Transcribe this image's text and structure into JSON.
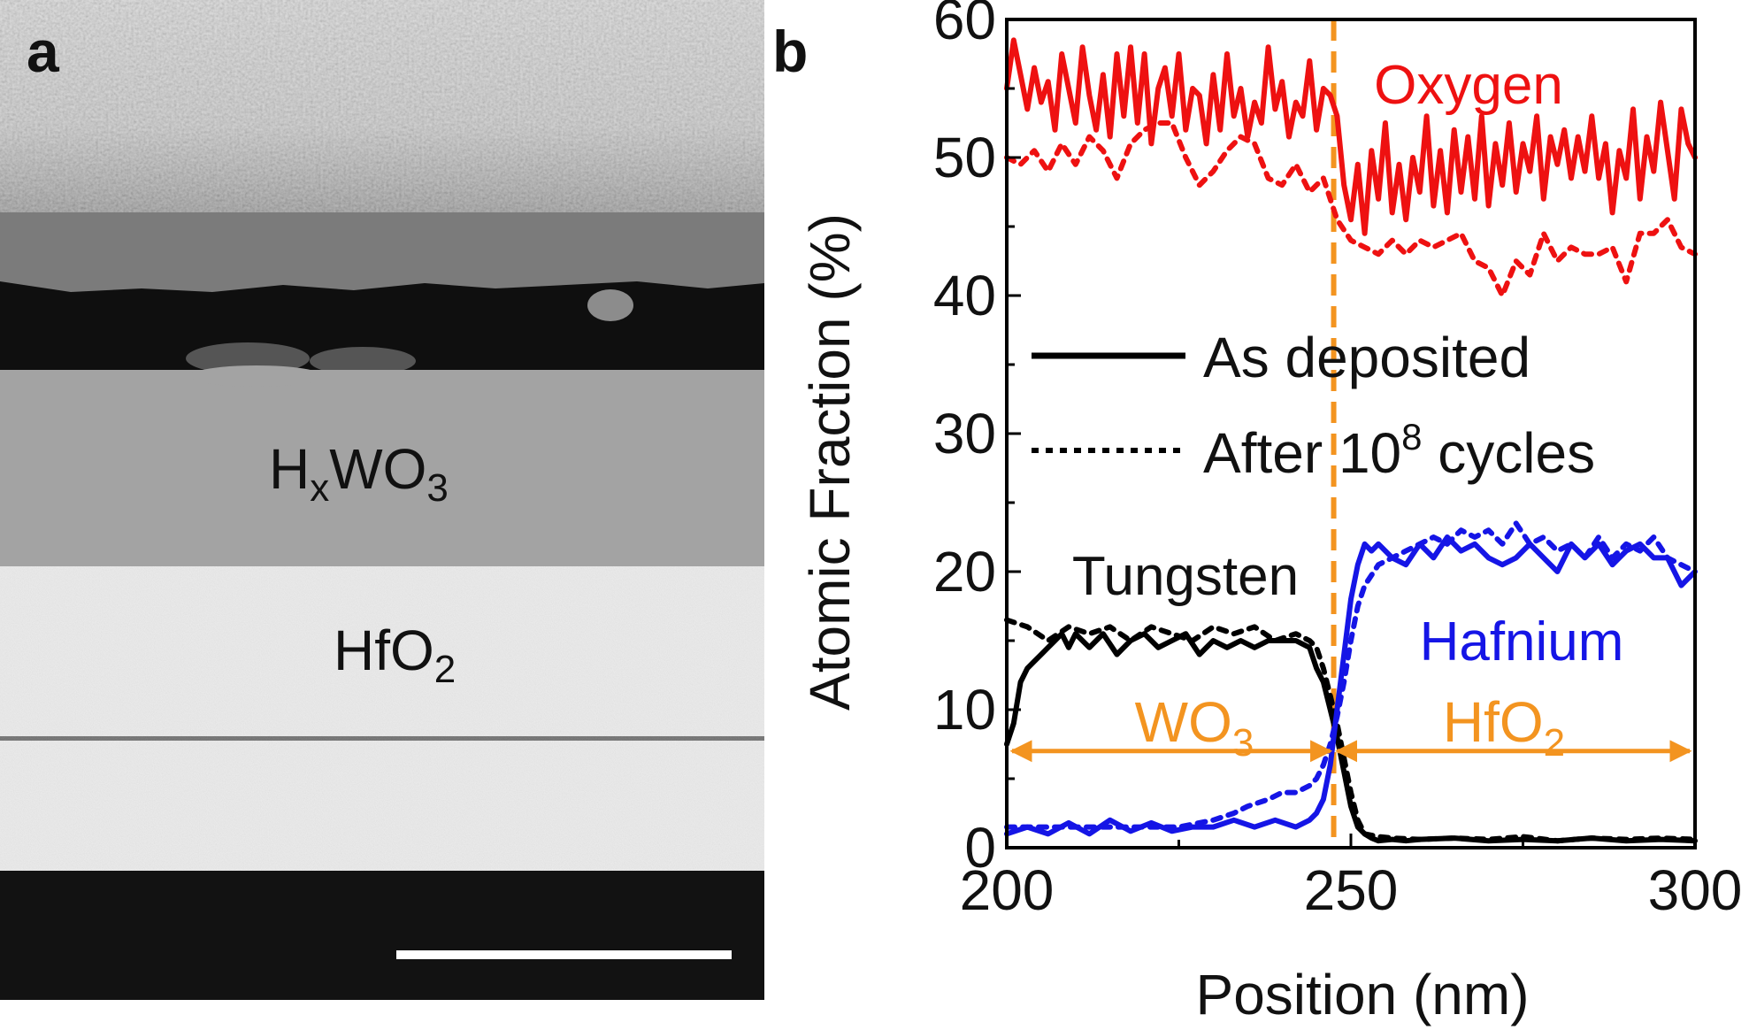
{
  "panel_a": {
    "label": "a",
    "layer_top": {
      "main": "H",
      "sub1": "x",
      "mid": "WO",
      "sub2": "3"
    },
    "layer_bottom": {
      "main": "HfO",
      "sub": "2"
    }
  },
  "chart_data": {
    "type": "line",
    "panel_label": "b",
    "xlabel": "Position (nm)",
    "ylabel": "Atomic Fraction (%)",
    "xlim": [
      200,
      300
    ],
    "ylim": [
      0,
      60
    ],
    "xticks": [
      200,
      250,
      300
    ],
    "yticks": [
      0,
      10,
      20,
      30,
      40,
      50,
      60
    ],
    "interface_x": 247.5,
    "legend": {
      "solid": "As deposited",
      "dotted_prefix": "After 10",
      "dotted_sup": "8",
      "dotted_suffix": " cycles"
    },
    "annotations": {
      "oxygen": "Oxygen",
      "tungsten": "Tungsten",
      "hafnium": "Hafnium",
      "region_left_main": "WO",
      "region_left_sub": "3",
      "region_right_main": "HfO",
      "region_right_sub": "2"
    },
    "colors": {
      "oxygen": "#ee1111",
      "tungsten": "#000000",
      "hafnium": "#1515e6",
      "interface": "#f39420"
    },
    "region_arrow_y": 7,
    "series": [
      {
        "name": "Oxygen (as deposited)",
        "color": "#ee1111",
        "style": "solid",
        "x": [
          200,
          201,
          202,
          203,
          204,
          205,
          206,
          207,
          208,
          209,
          210,
          211,
          212,
          213,
          214,
          215,
          216,
          217,
          218,
          219,
          220,
          221,
          222,
          223,
          224,
          225,
          226,
          227,
          228,
          229,
          230,
          231,
          232,
          233,
          234,
          235,
          236,
          237,
          238,
          239,
          240,
          241,
          242,
          243,
          244,
          245,
          246,
          247,
          248,
          249,
          250,
          251,
          252,
          253,
          254,
          255,
          256,
          257,
          258,
          259,
          260,
          261,
          262,
          263,
          264,
          265,
          266,
          267,
          268,
          269,
          270,
          271,
          272,
          273,
          274,
          275,
          276,
          277,
          278,
          279,
          280,
          281,
          282,
          283,
          284,
          285,
          286,
          287,
          288,
          289,
          290,
          291,
          292,
          293,
          294,
          295,
          296,
          297,
          298,
          299,
          300
        ],
        "y": [
          55,
          58.5,
          56,
          53.5,
          56.5,
          54,
          55.5,
          52,
          57.5,
          55,
          52.5,
          58,
          54.5,
          52,
          56,
          51.5,
          57.5,
          53,
          58,
          52.5,
          57.5,
          51,
          55,
          56.5,
          53,
          57.5,
          52,
          55,
          54.5,
          51,
          56,
          52,
          57.5,
          53,
          55,
          51.5,
          54,
          52.5,
          58,
          53.5,
          55.5,
          51.5,
          54,
          53,
          57,
          52,
          55,
          54.5,
          53,
          48,
          45.5,
          49.5,
          44.5,
          50.5,
          47,
          52.5,
          46,
          49.5,
          45.5,
          50,
          47.5,
          53,
          46.5,
          50.5,
          46,
          52,
          47.5,
          51.5,
          47,
          53,
          46.5,
          51,
          48,
          52.5,
          47.5,
          51,
          49,
          53,
          47,
          51.5,
          49.5,
          52,
          48.5,
          51.5,
          49,
          53,
          48.5,
          51,
          46,
          50.5,
          48.5,
          53.5,
          47,
          51.5,
          49,
          54,
          50.5,
          47,
          53.5,
          51,
          50
        ]
      },
      {
        "name": "Oxygen (after 1e8 cycles)",
        "color": "#ee1111",
        "style": "dotted",
        "x": [
          200,
          202,
          204,
          206,
          208,
          210,
          212,
          214,
          216,
          218,
          220,
          222,
          224,
          226,
          228,
          230,
          232,
          234,
          236,
          238,
          240,
          242,
          244,
          246,
          248,
          250,
          252,
          254,
          256,
          258,
          260,
          262,
          264,
          266,
          268,
          270,
          272,
          274,
          276,
          278,
          280,
          282,
          284,
          286,
          288,
          290,
          292,
          294,
          296,
          298,
          300
        ],
        "y": [
          50,
          49.5,
          50.5,
          49,
          51,
          49.5,
          51.5,
          50.5,
          48.5,
          51,
          52,
          52.5,
          52.5,
          50,
          48,
          49,
          50.5,
          51.5,
          51,
          48.5,
          48,
          49.5,
          47.5,
          48.5,
          45.5,
          44,
          43.5,
          43,
          44,
          43,
          44,
          43.5,
          44,
          44.5,
          42.5,
          42,
          40,
          42.5,
          41.5,
          44.5,
          42.5,
          43.5,
          43,
          43,
          43.5,
          41,
          44.5,
          44.5,
          45.5,
          43.5,
          43
        ]
      },
      {
        "name": "Tungsten (as deposited)",
        "color": "#000000",
        "style": "solid",
        "x": [
          200,
          201,
          202,
          203,
          204,
          205,
          206,
          207,
          208,
          209,
          210,
          212,
          214,
          216,
          218,
          220,
          222,
          224,
          226,
          228,
          230,
          232,
          234,
          236,
          238,
          240,
          242,
          244,
          245,
          246,
          247,
          248,
          249,
          250,
          251,
          252,
          253,
          254,
          256,
          258,
          260,
          265,
          270,
          275,
          280,
          285,
          290,
          295,
          300
        ],
        "y": [
          7.5,
          9,
          12,
          13,
          13.5,
          14,
          14.5,
          15,
          15.5,
          14.5,
          15.5,
          14.5,
          15.5,
          14,
          15,
          15.5,
          14.5,
          15,
          15.5,
          14,
          15,
          14.5,
          15,
          14.5,
          15,
          15,
          15,
          14.5,
          13,
          12,
          10,
          8,
          5.5,
          3,
          1.5,
          1,
          0.7,
          0.5,
          0.6,
          0.5,
          0.6,
          0.7,
          0.5,
          0.6,
          0.5,
          0.7,
          0.5,
          0.6,
          0.5
        ]
      },
      {
        "name": "Tungsten (after 1e8 cycles)",
        "color": "#000000",
        "style": "dotted",
        "x": [
          200,
          203,
          206,
          209,
          212,
          215,
          218,
          221,
          224,
          227,
          230,
          233,
          236,
          239,
          242,
          244,
          245,
          246,
          247,
          248,
          249,
          250,
          251,
          252,
          254,
          256,
          260,
          265,
          270,
          275,
          280,
          285,
          290,
          295,
          300
        ],
        "y": [
          16.5,
          16,
          15,
          16,
          15.5,
          16,
          15,
          16,
          15.5,
          15,
          16,
          15.5,
          16,
          15,
          15.5,
          15,
          14.5,
          13,
          11,
          9,
          6.5,
          4,
          2,
          1,
          0.8,
          0.7,
          0.6,
          0.7,
          0.6,
          0.8,
          0.5,
          0.7,
          0.6,
          0.7,
          0.6
        ]
      },
      {
        "name": "Hafnium (as deposited)",
        "color": "#1515e6",
        "style": "solid",
        "x": [
          200,
          203,
          206,
          209,
          212,
          215,
          218,
          221,
          224,
          227,
          230,
          233,
          236,
          239,
          242,
          244,
          245,
          246,
          247,
          248,
          249,
          250,
          251,
          252,
          253,
          254,
          256,
          258,
          260,
          262,
          264,
          266,
          268,
          270,
          272,
          274,
          276,
          278,
          280,
          282,
          284,
          286,
          288,
          290,
          292,
          294,
          296,
          298,
          300
        ],
        "y": [
          1,
          1.5,
          1,
          1.8,
          1,
          2,
          1.2,
          1.8,
          1.2,
          1.5,
          1.5,
          2,
          1.5,
          2,
          1.5,
          2,
          2.5,
          3.5,
          6,
          10,
          14,
          18,
          20.5,
          22,
          21.5,
          22,
          21,
          20.5,
          22,
          21,
          22.5,
          21.5,
          22,
          21,
          20.5,
          21,
          22,
          21,
          20,
          22,
          21,
          22,
          20.5,
          21.5,
          22,
          21,
          21,
          19,
          20
        ]
      },
      {
        "name": "Hafnium (after 1e8 cycles)",
        "color": "#1515e6",
        "style": "dotted",
        "x": [
          200,
          205,
          210,
          215,
          220,
          225,
          230,
          233,
          235,
          238,
          240,
          242,
          244,
          245,
          246,
          247,
          248,
          249,
          250,
          251,
          252,
          254,
          256,
          258,
          260,
          262,
          264,
          266,
          268,
          270,
          272,
          274,
          276,
          278,
          280,
          282,
          284,
          286,
          288,
          290,
          292,
          294,
          296,
          298,
          300
        ],
        "y": [
          1.5,
          1.5,
          1.5,
          1.5,
          1.5,
          1.5,
          2,
          2.5,
          3,
          3.5,
          4,
          4,
          4.5,
          5,
          6,
          7.5,
          9.5,
          12,
          15,
          17.5,
          19,
          20.5,
          21,
          21.5,
          22,
          22.5,
          22,
          23,
          22.5,
          23,
          22,
          23.5,
          22,
          22.5,
          21.5,
          22,
          21,
          22.5,
          21,
          22,
          21.5,
          22.5,
          21,
          20.5,
          20
        ]
      }
    ]
  }
}
